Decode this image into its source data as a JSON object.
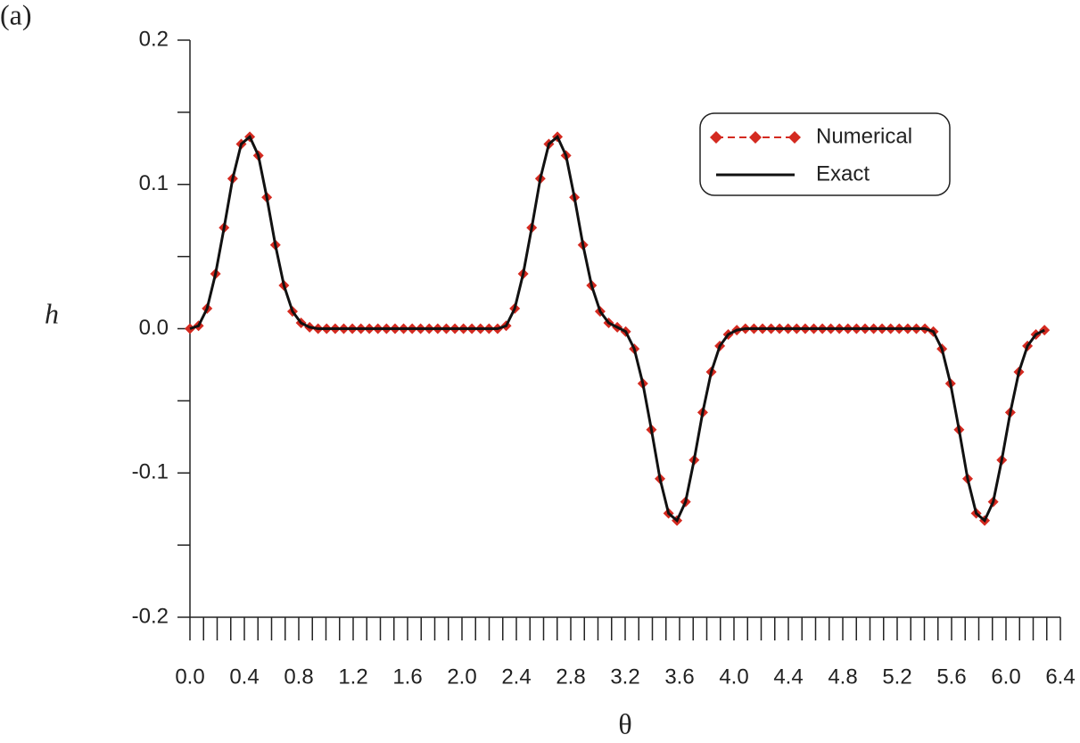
{
  "chart_data": {
    "type": "line",
    "panel_label": "(a)",
    "xlabel": "θ",
    "ylabel": "h",
    "xlim": [
      0,
      6.4
    ],
    "ylim": [
      -0.2,
      0.2
    ],
    "xticks": [
      {
        "value": 0,
        "label": "0.0"
      },
      0.4,
      0.8,
      1.2,
      1.6,
      {
        "value": 2,
        "label": "2.0"
      },
      2.4,
      2.8,
      3.2,
      3.6,
      {
        "value": 4,
        "label": "4.0"
      },
      4.4,
      4.8,
      5.2,
      5.6,
      {
        "value": 6,
        "label": "6.0"
      },
      6.4
    ],
    "xminorticks": [
      0.1,
      0.2,
      0.3,
      0.5,
      0.6,
      0.7,
      0.9,
      1,
      1.1,
      1.3,
      1.4,
      1.5,
      1.7,
      1.8,
      1.9,
      2.1,
      2.2,
      2.3,
      2.5,
      2.6,
      2.7,
      2.9,
      3,
      3.1,
      3.3,
      3.4,
      3.5,
      3.7,
      3.8,
      3.9,
      4.1,
      4.2,
      4.3,
      4.5,
      4.6,
      4.7,
      4.9,
      5,
      5.1,
      5.3,
      5.4,
      5.5,
      5.7,
      5.8,
      5.9,
      6.1,
      6.2,
      6.3
    ],
    "yticks": [
      -0.2,
      -0.1,
      {
        "value": 0,
        "label": "0.0"
      },
      0.1,
      0.2
    ],
    "yminorticks": [
      -0.15,
      -0.05,
      0.05,
      0.15
    ],
    "legend": "upper right",
    "x": [
      0,
      0.063,
      0.126,
      0.188,
      0.251,
      0.314,
      0.377,
      0.44,
      0.503,
      0.565,
      0.628,
      0.691,
      0.754,
      0.817,
      0.88,
      0.942,
      1.005,
      1.068,
      1.131,
      1.194,
      1.257,
      1.319,
      1.382,
      1.445,
      1.508,
      1.571,
      1.634,
      1.696,
      1.759,
      1.822,
      1.885,
      1.948,
      2.011,
      2.073,
      2.136,
      2.199,
      2.262,
      2.325,
      2.388,
      2.45,
      2.513,
      2.576,
      2.639,
      2.702,
      2.765,
      2.827,
      2.89,
      2.953,
      3.016,
      3.079,
      3.142,
      3.204,
      3.267,
      3.33,
      3.393,
      3.456,
      3.519,
      3.581,
      3.644,
      3.707,
      3.77,
      3.833,
      3.896,
      3.958,
      4.021,
      4.084,
      4.147,
      4.21,
      4.273,
      4.335,
      4.398,
      4.461,
      4.524,
      4.587,
      4.65,
      4.712,
      4.775,
      4.838,
      4.901,
      4.964,
      5.027,
      5.089,
      5.152,
      5.215,
      5.278,
      5.341,
      5.404,
      5.466,
      5.529,
      5.592,
      5.655,
      5.718,
      5.781,
      5.843,
      5.906,
      5.969,
      6.032,
      6.095,
      6.158,
      6.22,
      6.283
    ],
    "series": [
      {
        "name": "Numerical",
        "color": "#d42a20",
        "style": "dashed-diamond",
        "values": [
          0,
          0.002,
          0.014,
          0.038,
          0.07,
          0.104,
          0.128,
          0.133,
          0.12,
          0.091,
          0.058,
          0.03,
          0.012,
          0.004,
          0.001,
          0,
          0,
          0,
          0,
          0,
          0,
          0,
          0,
          0,
          0,
          0,
          0,
          0,
          0,
          0,
          0,
          0,
          0,
          0,
          0,
          0,
          0,
          0.002,
          0.014,
          0.038,
          0.07,
          0.104,
          0.128,
          0.133,
          0.12,
          0.091,
          0.058,
          0.03,
          0.012,
          0.004,
          0.001,
          -0.002,
          -0.014,
          -0.038,
          -0.07,
          -0.104,
          -0.128,
          -0.133,
          -0.12,
          -0.091,
          -0.058,
          -0.03,
          -0.012,
          -0.004,
          -0.001,
          0,
          0,
          0,
          0,
          0,
          0,
          0,
          0,
          0,
          0,
          0,
          0,
          0,
          0,
          0,
          0,
          0,
          0,
          0,
          0,
          0,
          0,
          -0.002,
          -0.014,
          -0.038,
          -0.07,
          -0.104,
          -0.128,
          -0.133,
          -0.12,
          -0.091,
          -0.058,
          -0.03,
          -0.012,
          -0.004,
          -0.001
        ]
      },
      {
        "name": "Exact",
        "color": "#111111",
        "style": "solid",
        "values": [
          0,
          0.002,
          0.014,
          0.038,
          0.07,
          0.104,
          0.128,
          0.133,
          0.12,
          0.091,
          0.058,
          0.03,
          0.012,
          0.004,
          0.001,
          0,
          0,
          0,
          0,
          0,
          0,
          0,
          0,
          0,
          0,
          0,
          0,
          0,
          0,
          0,
          0,
          0,
          0,
          0,
          0,
          0,
          0,
          0.002,
          0.014,
          0.038,
          0.07,
          0.104,
          0.128,
          0.133,
          0.12,
          0.091,
          0.058,
          0.03,
          0.012,
          0.004,
          0.001,
          -0.002,
          -0.014,
          -0.038,
          -0.07,
          -0.104,
          -0.128,
          -0.133,
          -0.12,
          -0.091,
          -0.058,
          -0.03,
          -0.012,
          -0.004,
          -0.001,
          0,
          0,
          0,
          0,
          0,
          0,
          0,
          0,
          0,
          0,
          0,
          0,
          0,
          0,
          0,
          0,
          0,
          0,
          0,
          0,
          0,
          0,
          -0.002,
          -0.014,
          -0.038,
          -0.07,
          -0.104,
          -0.128,
          -0.133,
          -0.12,
          -0.091,
          -0.058,
          -0.03,
          -0.012,
          -0.004,
          -0.001
        ]
      }
    ]
  }
}
